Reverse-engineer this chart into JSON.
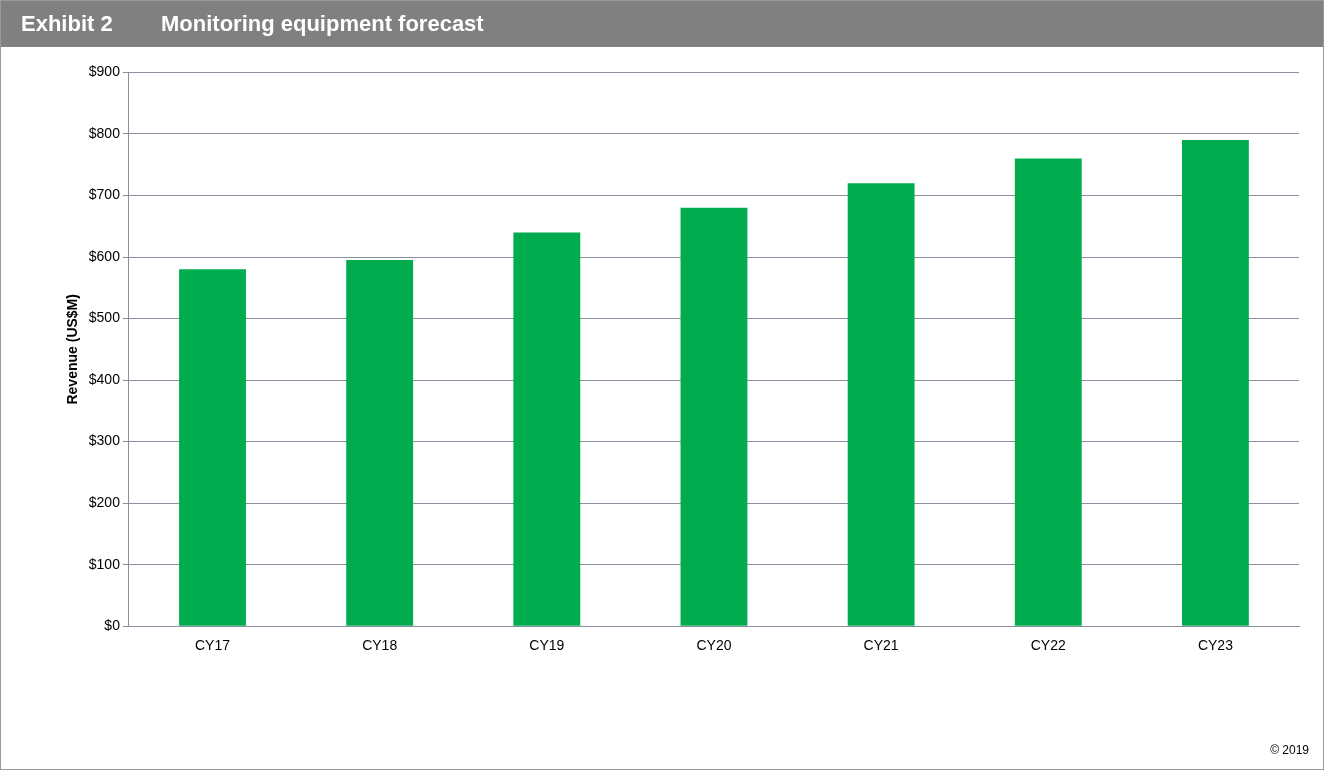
{
  "chart_data": {
    "type": "bar",
    "title": "Monitoring equipment forecast",
    "ylabel": "Revenue (US$M)",
    "annotations": [
      "Exhibit 2",
      "© 2019"
    ],
    "categories": [
      "CY17",
      "CY18",
      "CY19",
      "CY20",
      "CY21",
      "CY22",
      "CY23"
    ],
    "values": [
      580,
      595,
      640,
      680,
      720,
      760,
      790
    ],
    "color": "#00ac4e",
    "ylim": [
      0,
      900
    ],
    "yticks": [
      {
        "value": 0,
        "label": "$0"
      },
      {
        "value": 100,
        "label": "$100"
      },
      {
        "value": 200,
        "label": "$200"
      },
      {
        "value": 300,
        "label": "$300"
      },
      {
        "value": 400,
        "label": "$400"
      },
      {
        "value": 500,
        "label": "$500"
      },
      {
        "value": 600,
        "label": "$600"
      },
      {
        "value": 700,
        "label": "$700"
      },
      {
        "value": 800,
        "label": "$800"
      },
      {
        "value": 900,
        "label": "$900"
      }
    ],
    "grid": "y",
    "legend": false
  }
}
